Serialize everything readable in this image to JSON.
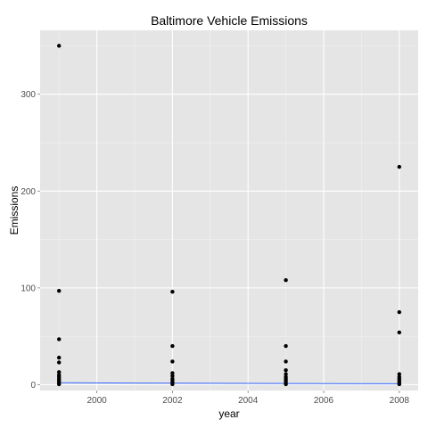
{
  "chart_data": {
    "type": "scatter",
    "title": "Baltimore Vehicle Emissions",
    "xlabel": "year",
    "ylabel": "Emissions",
    "xlim": [
      1998.5,
      2008.5
    ],
    "ylim": [
      -6,
      366
    ],
    "x_ticks": [
      2000,
      2002,
      2004,
      2006,
      2008
    ],
    "y_ticks": [
      0,
      100,
      200,
      300
    ],
    "grid": true,
    "points": [
      {
        "x": 1999,
        "y": 350
      },
      {
        "x": 1999,
        "y": 97
      },
      {
        "x": 1999,
        "y": 47
      },
      {
        "x": 1999,
        "y": 28
      },
      {
        "x": 1999,
        "y": 23
      },
      {
        "x": 1999,
        "y": 13
      },
      {
        "x": 1999,
        "y": 10
      },
      {
        "x": 1999,
        "y": 8
      },
      {
        "x": 1999,
        "y": 6
      },
      {
        "x": 1999,
        "y": 4
      },
      {
        "x": 1999,
        "y": 2
      },
      {
        "x": 1999,
        "y": 0.5
      },
      {
        "x": 2002,
        "y": 96
      },
      {
        "x": 2002,
        "y": 40
      },
      {
        "x": 2002,
        "y": 24
      },
      {
        "x": 2002,
        "y": 12
      },
      {
        "x": 2002,
        "y": 9
      },
      {
        "x": 2002,
        "y": 6
      },
      {
        "x": 2002,
        "y": 4
      },
      {
        "x": 2002,
        "y": 2
      },
      {
        "x": 2002,
        "y": 0.5
      },
      {
        "x": 2005,
        "y": 108
      },
      {
        "x": 2005,
        "y": 40
      },
      {
        "x": 2005,
        "y": 24
      },
      {
        "x": 2005,
        "y": 15
      },
      {
        "x": 2005,
        "y": 11
      },
      {
        "x": 2005,
        "y": 8
      },
      {
        "x": 2005,
        "y": 6
      },
      {
        "x": 2005,
        "y": 4
      },
      {
        "x": 2005,
        "y": 2
      },
      {
        "x": 2005,
        "y": 0.5
      },
      {
        "x": 2008,
        "y": 225
      },
      {
        "x": 2008,
        "y": 75
      },
      {
        "x": 2008,
        "y": 54
      },
      {
        "x": 2008,
        "y": 11
      },
      {
        "x": 2008,
        "y": 8
      },
      {
        "x": 2008,
        "y": 6
      },
      {
        "x": 2008,
        "y": 4
      },
      {
        "x": 2008,
        "y": 2
      },
      {
        "x": 2008,
        "y": 0.5
      }
    ],
    "trend_line": {
      "x": [
        1999,
        2008
      ],
      "y": [
        2,
        1
      ]
    },
    "colors": {
      "panel": "#e5e5e5",
      "grid_major": "#ffffff",
      "grid_minor": "#f2f2f2",
      "points": "#000000",
      "trend": "#3366ff",
      "tick_label": "#4d4d4d"
    }
  }
}
